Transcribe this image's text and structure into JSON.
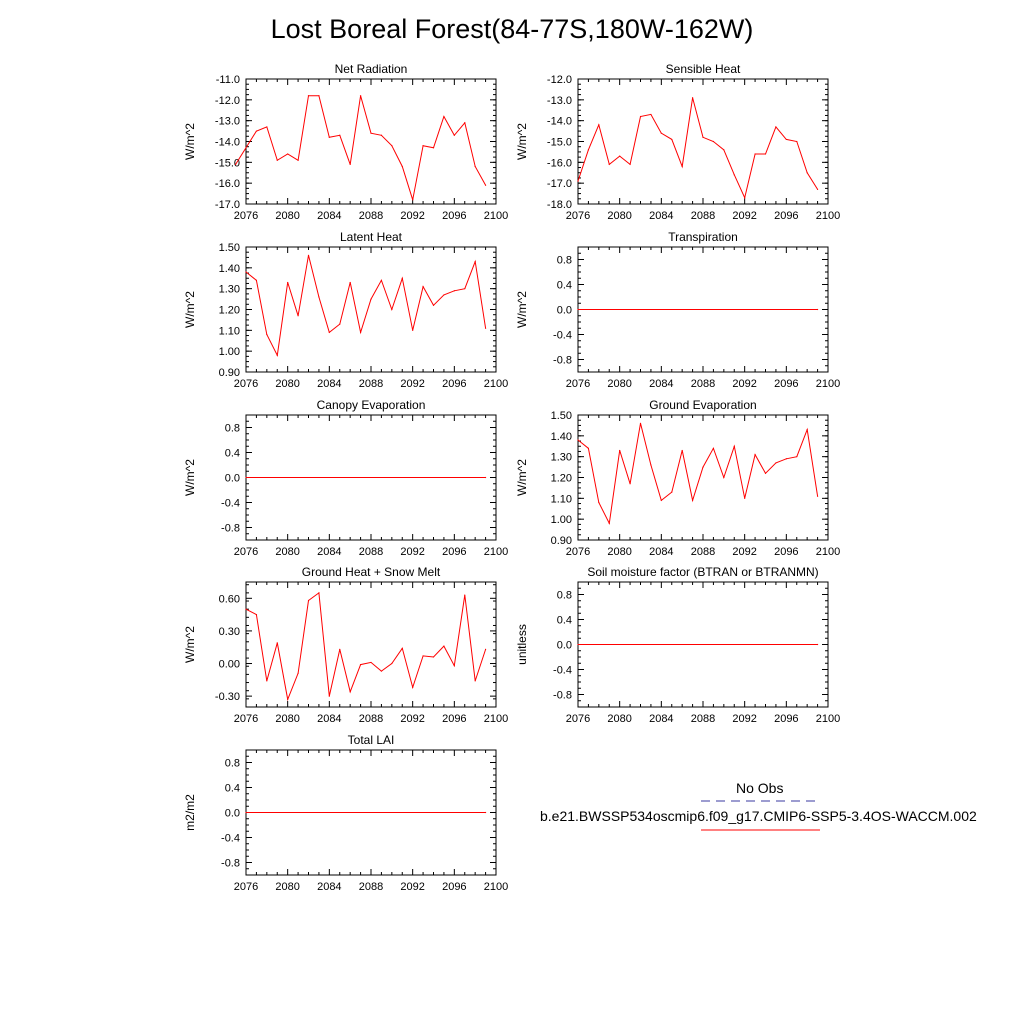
{
  "title": "Lost Boreal Forest(84-77S,180W-162W)",
  "colors": {
    "series": "#ff0000",
    "obs": "#3a3aa0",
    "axis": "#000000"
  },
  "legend": {
    "obs_label": "No Obs",
    "model_label": "b.e21.BWSSP534oscmip6.f09_g17.CMIP6-SSP5-3.4OS-WACCM.002"
  },
  "chart_data": [
    {
      "type": "line",
      "title": "Net Radiation",
      "ylabel": "W/m^2",
      "xlabel": "",
      "xlim": [
        2076,
        2100
      ],
      "xticks": [
        2076,
        2080,
        2084,
        2088,
        2092,
        2096,
        2100
      ],
      "ylim": [
        -17.0,
        -11.0
      ],
      "yticks": [
        -17.0,
        -16.0,
        -15.0,
        -14.0,
        -13.0,
        -12.0,
        -11.0
      ],
      "ydecimals": 1,
      "x": [
        2075,
        2077,
        2078,
        2079,
        2080,
        2081,
        2082,
        2083,
        2084,
        2085,
        2086,
        2087,
        2088,
        2089,
        2090,
        2091,
        2092,
        2093,
        2094,
        2095,
        2096,
        2097,
        2098,
        2099
      ],
      "values": [
        -15.1,
        -13.5,
        -13.3,
        -14.9,
        -14.6,
        -14.9,
        -11.8,
        -11.8,
        -13.8,
        -13.7,
        -15.1,
        -11.8,
        -13.6,
        -13.7,
        -14.2,
        -15.2,
        -16.8,
        -14.2,
        -14.3,
        -12.8,
        -13.7,
        -13.1,
        -15.2,
        -16.1
      ]
    },
    {
      "type": "line",
      "title": "Sensible Heat",
      "ylabel": "W/m^2",
      "xlabel": "",
      "xlim": [
        2076,
        2100
      ],
      "xticks": [
        2076,
        2080,
        2084,
        2088,
        2092,
        2096,
        2100
      ],
      "ylim": [
        -18.0,
        -12.0
      ],
      "yticks": [
        -18.0,
        -17.0,
        -16.0,
        -15.0,
        -14.0,
        -13.0,
        -12.0
      ],
      "ydecimals": 1,
      "x": [
        2076,
        2077,
        2078,
        2079,
        2080,
        2081,
        2082,
        2083,
        2084,
        2085,
        2086,
        2087,
        2088,
        2089,
        2090,
        2091,
        2092,
        2093,
        2094,
        2095,
        2096,
        2097,
        2098,
        2099
      ],
      "values": [
        -16.9,
        -15.4,
        -14.2,
        -16.1,
        -15.7,
        -16.1,
        -13.8,
        -13.7,
        -14.6,
        -14.9,
        -16.2,
        -12.9,
        -14.8,
        -15.0,
        -15.4,
        -16.6,
        -17.7,
        -15.6,
        -15.6,
        -14.3,
        -14.9,
        -15.0,
        -16.5,
        -17.3
      ]
    },
    {
      "type": "line",
      "title": "Latent Heat",
      "ylabel": "W/m^2",
      "xlabel": "",
      "xlim": [
        2076,
        2100
      ],
      "xticks": [
        2076,
        2080,
        2084,
        2088,
        2092,
        2096,
        2100
      ],
      "ylim": [
        0.9,
        1.5
      ],
      "yticks": [
        0.9,
        1.0,
        1.1,
        1.2,
        1.3,
        1.4,
        1.5
      ],
      "ydecimals": 2,
      "x": [
        2076,
        2077,
        2078,
        2079,
        2080,
        2081,
        2082,
        2083,
        2084,
        2085,
        2086,
        2087,
        2088,
        2089,
        2090,
        2091,
        2092,
        2093,
        2094,
        2095,
        2096,
        2097,
        2098,
        2099
      ],
      "values": [
        1.38,
        1.34,
        1.08,
        0.98,
        1.33,
        1.17,
        1.46,
        1.26,
        1.09,
        1.13,
        1.33,
        1.09,
        1.25,
        1.34,
        1.2,
        1.35,
        1.1,
        1.31,
        1.22,
        1.27,
        1.29,
        1.3,
        1.43,
        1.11
      ]
    },
    {
      "type": "line",
      "title": "Transpiration",
      "ylabel": "W/m^2",
      "xlabel": "",
      "xlim": [
        2076,
        2100
      ],
      "xticks": [
        2076,
        2080,
        2084,
        2088,
        2092,
        2096,
        2100
      ],
      "ylim": [
        -1.0,
        1.0
      ],
      "yticks": [
        -0.8,
        -0.4,
        0.0,
        0.4,
        0.8
      ],
      "ydecimals": 1,
      "x": [
        2076,
        2099
      ],
      "values": [
        0.0,
        0.0
      ]
    },
    {
      "type": "line",
      "title": "Canopy Evaporation",
      "ylabel": "W/m^2",
      "xlabel": "",
      "xlim": [
        2076,
        2100
      ],
      "xticks": [
        2076,
        2080,
        2084,
        2088,
        2092,
        2096,
        2100
      ],
      "ylim": [
        -1.0,
        1.0
      ],
      "yticks": [
        -0.8,
        -0.4,
        0.0,
        0.4,
        0.8
      ],
      "ydecimals": 1,
      "x": [
        2076,
        2099
      ],
      "values": [
        0.0,
        0.0
      ]
    },
    {
      "type": "line",
      "title": "Ground Evaporation",
      "ylabel": "W/m^2",
      "xlabel": "",
      "xlim": [
        2076,
        2100
      ],
      "xticks": [
        2076,
        2080,
        2084,
        2088,
        2092,
        2096,
        2100
      ],
      "ylim": [
        0.9,
        1.5
      ],
      "yticks": [
        0.9,
        1.0,
        1.1,
        1.2,
        1.3,
        1.4,
        1.5
      ],
      "ydecimals": 2,
      "x": [
        2076,
        2077,
        2078,
        2079,
        2080,
        2081,
        2082,
        2083,
        2084,
        2085,
        2086,
        2087,
        2088,
        2089,
        2090,
        2091,
        2092,
        2093,
        2094,
        2095,
        2096,
        2097,
        2098,
        2099
      ],
      "values": [
        1.38,
        1.34,
        1.08,
        0.98,
        1.33,
        1.17,
        1.46,
        1.26,
        1.09,
        1.13,
        1.33,
        1.09,
        1.25,
        1.34,
        1.2,
        1.35,
        1.1,
        1.31,
        1.22,
        1.27,
        1.29,
        1.3,
        1.43,
        1.11
      ]
    },
    {
      "type": "line",
      "title": "Ground Heat + Snow Melt",
      "ylabel": "W/m^2",
      "xlabel": "",
      "xlim": [
        2076,
        2100
      ],
      "xticks": [
        2076,
        2080,
        2084,
        2088,
        2092,
        2096,
        2100
      ],
      "ylim": [
        -0.4,
        0.75
      ],
      "yticks": [
        -0.3,
        0.0,
        0.3,
        0.6
      ],
      "ydecimals": 2,
      "x": [
        2076,
        2077,
        2078,
        2079,
        2080,
        2081,
        2082,
        2083,
        2084,
        2085,
        2086,
        2087,
        2088,
        2089,
        2090,
        2091,
        2092,
        2093,
        2094,
        2095,
        2096,
        2097,
        2098,
        2099
      ],
      "values": [
        0.5,
        0.45,
        -0.16,
        0.19,
        -0.33,
        -0.09,
        0.58,
        0.65,
        -0.3,
        0.13,
        -0.26,
        -0.01,
        0.01,
        -0.07,
        0.0,
        0.14,
        -0.22,
        0.07,
        0.06,
        0.16,
        -0.02,
        0.63,
        -0.16,
        0.13
      ]
    },
    {
      "type": "line",
      "title": "Soil moisture factor (BTRAN or BTRANMN)",
      "ylabel": "unitless",
      "xlabel": "",
      "xlim": [
        2076,
        2100
      ],
      "xticks": [
        2076,
        2080,
        2084,
        2088,
        2092,
        2096,
        2100
      ],
      "ylim": [
        -1.0,
        1.0
      ],
      "yticks": [
        -0.8,
        -0.4,
        0.0,
        0.4,
        0.8
      ],
      "ydecimals": 1,
      "x": [
        2076,
        2099
      ],
      "values": [
        0.0,
        0.0
      ]
    },
    {
      "type": "line",
      "title": "Total LAI",
      "ylabel": "m2/m2",
      "xlabel": "",
      "xlim": [
        2076,
        2100
      ],
      "xticks": [
        2076,
        2080,
        2084,
        2088,
        2092,
        2096,
        2100
      ],
      "ylim": [
        -1.0,
        1.0
      ],
      "yticks": [
        -0.8,
        -0.4,
        0.0,
        0.4,
        0.8
      ],
      "ydecimals": 1,
      "x": [
        2076,
        2099
      ],
      "values": [
        0.0,
        0.0
      ]
    }
  ]
}
